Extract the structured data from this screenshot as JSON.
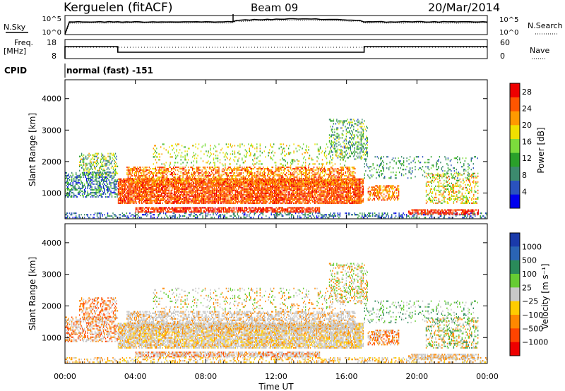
{
  "header": {
    "station": "Kerguelen (fitACF)",
    "beam": "Beam 09",
    "date": "20/Mar/2014"
  },
  "nsky_panel": {
    "label": "N.Sky",
    "right_label": "N.Search",
    "left_ticks": [
      "10^5",
      "10^0"
    ],
    "right_ticks": [
      "10^5",
      "10^0"
    ]
  },
  "freq_panel": {
    "label_line1": "Freq.",
    "label_line2": "[MHz]",
    "right_label": "Nave",
    "left_ticks": [
      "18",
      "8"
    ],
    "right_ticks": [
      "60",
      "0"
    ]
  },
  "cpid": {
    "label": "CPID",
    "value": "normal (fast) -151"
  },
  "colors": {
    "power_scale": [
      "#0000ee",
      "#2a52be",
      "#3c8a6e",
      "#2aa02a",
      "#7cdc3c",
      "#f0e000",
      "#ff9900",
      "#ff5500",
      "#ee0000"
    ],
    "velocity_scale": [
      "#1a3aaa",
      "#2a64b4",
      "#2a8a5a",
      "#66cc33",
      "#c8c8c8",
      "#ffcc00",
      "#ff8800",
      "#ff4400",
      "#ee0000"
    ]
  },
  "chart_data": [
    {
      "type": "heatmap",
      "name": "power",
      "xlabel": "Time UT",
      "ylabel": "Slant Range [km]",
      "x_ticks": [
        "00:00",
        "04:00",
        "08:00",
        "12:00",
        "16:00",
        "20:00",
        "00:00"
      ],
      "y_ticks": [
        1000,
        2000,
        3000,
        4000
      ],
      "ylim": [
        180,
        4600
      ],
      "xlim_hours": [
        0,
        24
      ],
      "colorbar": {
        "label": "Power [dB]",
        "ticks": [
          "4",
          "8",
          "12",
          "16",
          "20",
          "24",
          "28"
        ],
        "range": [
          0,
          30
        ]
      }
    },
    {
      "type": "heatmap",
      "name": "velocity",
      "xlabel": "Time UT",
      "ylabel": "Slant Range [km]",
      "x_ticks": [
        "00:00",
        "04:00",
        "08:00",
        "12:00",
        "16:00",
        "20:00",
        "00:00"
      ],
      "y_ticks": [
        1000,
        2000,
        3000,
        4000
      ],
      "ylim": [
        180,
        4600
      ],
      "xlim_hours": [
        0,
        24
      ],
      "colorbar": {
        "label": "Velocity [m s⁻¹]",
        "ticks": [
          "1000",
          "500",
          "100",
          "25",
          "−25",
          "−100",
          "−500",
          "−1000"
        ]
      }
    }
  ]
}
